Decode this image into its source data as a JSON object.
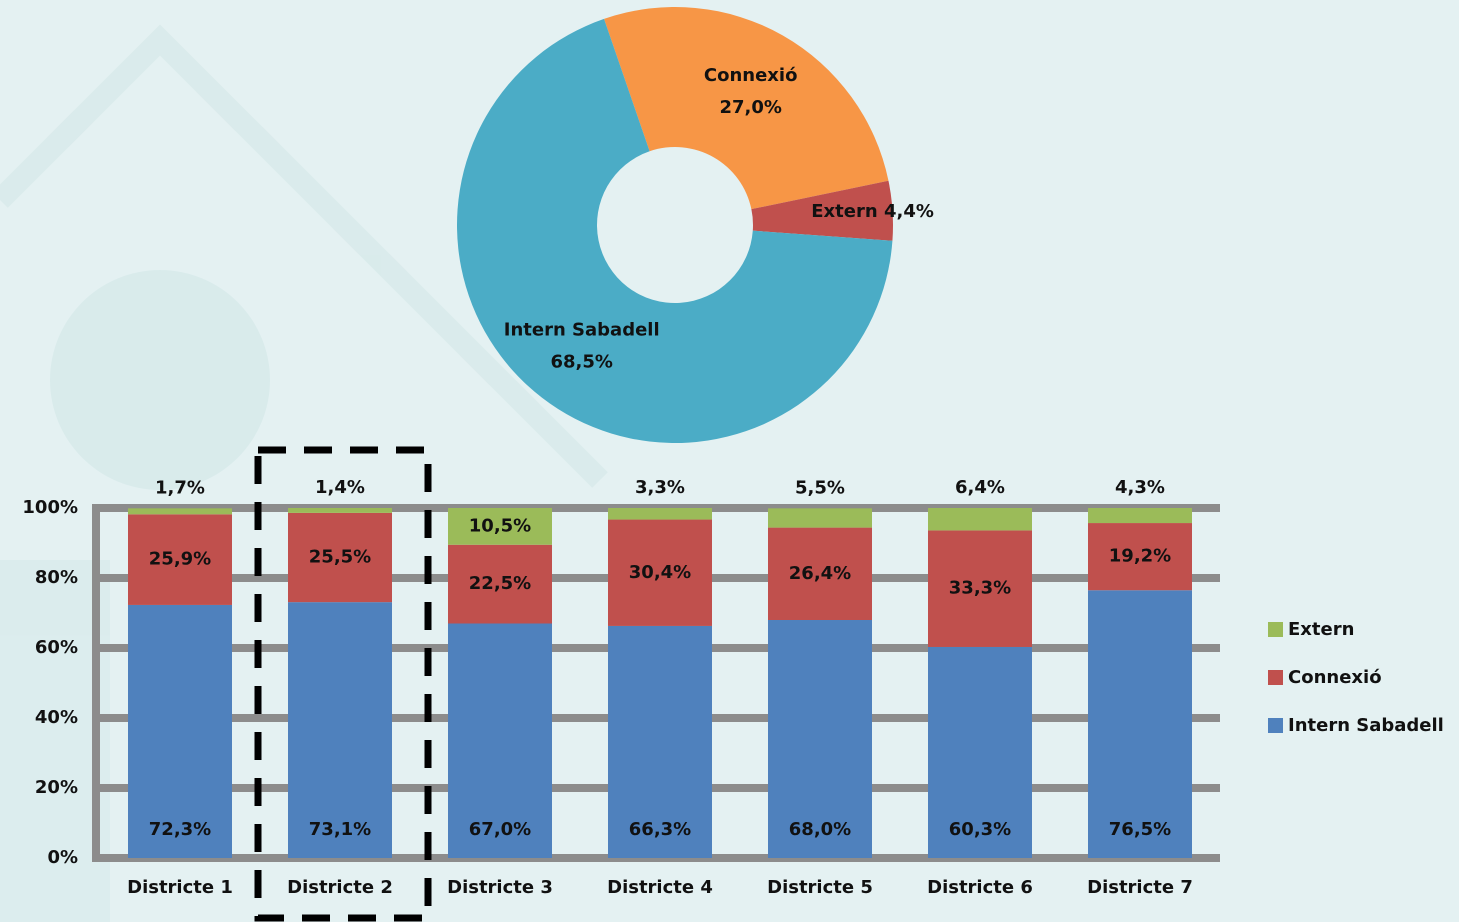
{
  "chart_data": [
    {
      "type": "pie",
      "categories": [
        "Connexió",
        "Extern",
        "Intern Sabadell"
      ],
      "values": [
        27.0,
        4.4,
        68.5
      ],
      "value_labels": [
        "27,0%",
        "4,4%",
        "68,5%"
      ],
      "colors": [
        "#f79646",
        "#c0504d",
        "#4bacc6"
      ]
    },
    {
      "type": "bar",
      "stacked": true,
      "categories": [
        "Districte 1",
        "Districte 2",
        "Districte 3",
        "Districte 4",
        "Districte 5",
        "Districte 6",
        "Districte 7"
      ],
      "series": [
        {
          "name": "Intern Sabadell",
          "color": "#4f81bd",
          "values": [
            72.3,
            73.1,
            67.0,
            66.3,
            68.0,
            60.3,
            76.5
          ],
          "value_labels": [
            "72,3%",
            "73,1%",
            "67,0%",
            "66,3%",
            "68,0%",
            "60,3%",
            "76,5%"
          ]
        },
        {
          "name": "Connexió",
          "color": "#c0504d",
          "values": [
            25.9,
            25.5,
            22.5,
            30.4,
            26.4,
            33.3,
            19.2
          ],
          "value_labels": [
            "25,9%",
            "25,5%",
            "22,5%",
            "30,4%",
            "26,4%",
            "33,3%",
            "19,2%"
          ]
        },
        {
          "name": "Extern",
          "color": "#9bbb59",
          "values": [
            1.7,
            1.4,
            10.5,
            3.3,
            5.5,
            6.4,
            4.3
          ],
          "value_labels": [
            "1,7%",
            "1,4%",
            "10,5%",
            "3,3%",
            "5,5%",
            "6,4%",
            "4,3%"
          ]
        }
      ],
      "ylim": [
        0,
        100
      ],
      "yticks": [
        {
          "value": 0,
          "label": "0%"
        },
        {
          "value": 20,
          "label": "20%"
        },
        {
          "value": 40,
          "label": "40%"
        },
        {
          "value": 60,
          "label": "60%"
        },
        {
          "value": 80,
          "label": "80%"
        },
        {
          "value": 100,
          "label": "100%"
        }
      ],
      "grid": true,
      "legend": "right"
    }
  ]
}
